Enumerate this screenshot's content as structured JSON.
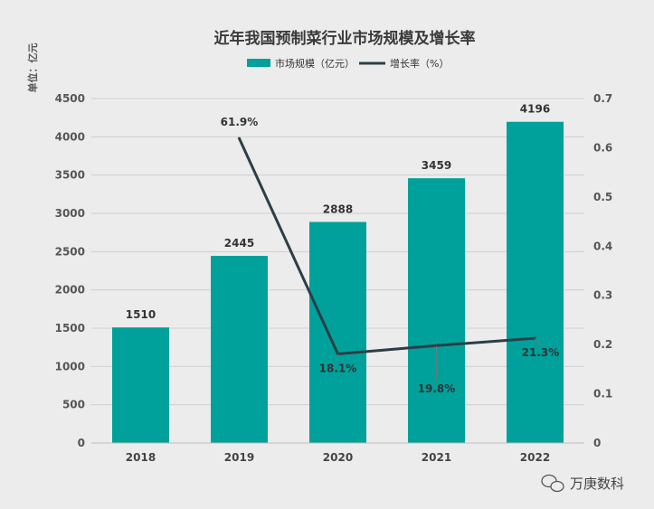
{
  "chart_data": {
    "type": "bar",
    "title": "近年我国预制菜行业市场规模及增长率",
    "unit_label": "单位：亿元",
    "categories": [
      "2018",
      "2019",
      "2020",
      "2021",
      "2022"
    ],
    "series": [
      {
        "name": "市场规模（亿元）",
        "type": "bar",
        "axis": "left",
        "color": "#00a19a",
        "values": [
          1510,
          2445,
          2888,
          3459,
          4196
        ],
        "labels": [
          "1510",
          "2445",
          "2888",
          "3459",
          "4196"
        ]
      },
      {
        "name": "增长率（%）",
        "type": "line",
        "axis": "right",
        "color": "#2c3e46",
        "values": [
          null,
          0.619,
          0.181,
          0.198,
          0.213
        ],
        "labels": [
          "",
          "61.9%",
          "18.1%",
          "19.8%",
          "21.3%"
        ]
      }
    ],
    "y_left": {
      "min": 0,
      "max": 4500,
      "ticks": [
        "0",
        "500",
        "1000",
        "1500",
        "2000",
        "2500",
        "3000",
        "3500",
        "4000",
        "4500"
      ]
    },
    "y_right": {
      "min": 0,
      "max": 0.7,
      "ticks": [
        "0",
        "0.1",
        "0.2",
        "0.3",
        "0.4",
        "0.5",
        "0.6",
        "0.7"
      ]
    },
    "grid": true,
    "legend_position": "top-center"
  },
  "watermark": {
    "text": "万庚数科",
    "icon": "wechat-icon"
  }
}
